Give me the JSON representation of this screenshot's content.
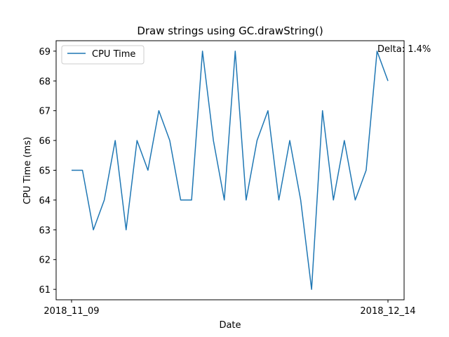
{
  "chart_data": {
    "type": "line",
    "title": "Draw strings using GC.drawString()",
    "xlabel": "Date",
    "ylabel": "CPU Time (ms)",
    "x_tick_labels": [
      "2018_11_09",
      "2018_12_14"
    ],
    "y_ticks": [
      61,
      62,
      63,
      64,
      65,
      66,
      67,
      68,
      69
    ],
    "ylim": [
      60.65,
      69.35
    ],
    "legend": {
      "placement": "top-left"
    },
    "grid": false,
    "annotation": "Delta: 1.4%",
    "series": [
      {
        "name": "CPU Time",
        "color": "#1f77b4",
        "values": [
          65,
          65,
          63,
          64,
          66,
          63,
          66,
          65,
          67,
          66,
          64,
          64,
          69,
          66,
          64,
          69,
          64,
          66,
          67,
          64,
          66,
          64,
          61,
          67,
          64,
          66,
          64,
          65,
          69,
          68
        ]
      }
    ]
  }
}
